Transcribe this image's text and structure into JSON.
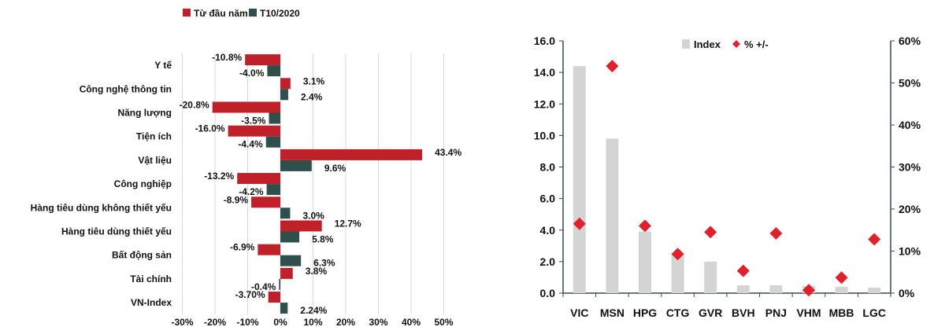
{
  "chart_data": [
    {
      "type": "bar",
      "orientation": "horizontal",
      "categories": [
        "Y tế",
        "Công nghệ thông tin",
        "Năng lượng",
        "Tiện ích",
        "Vật liệu",
        "Công nghiệp",
        "Hàng tiêu dùng không thiết yếu",
        "Hàng tiêu dùng thiết yếu",
        "Bất động sản",
        "Tài chính",
        "VN-Index"
      ],
      "series": [
        {
          "name": "Từ đầu năm",
          "color": "#c0202a",
          "values": [
            -10.8,
            3.1,
            -20.8,
            -16.0,
            43.4,
            -13.2,
            -8.9,
            12.7,
            -6.9,
            3.8,
            -3.7
          ],
          "labels": [
            "-10.8%",
            "3.1%",
            "-20.8%",
            "-16.0%",
            "43.4%",
            "-13.2%",
            "-8.9%",
            "12.7%",
            "-6.9%",
            "3.8%",
            "-3.70%"
          ]
        },
        {
          "name": "T10/2020",
          "color": "#2f4f4c",
          "values": [
            -4.0,
            2.4,
            -3.5,
            -4.4,
            9.6,
            -4.2,
            3.0,
            5.8,
            6.3,
            -0.4,
            2.24
          ],
          "labels": [
            "-4.0%",
            "2.4%",
            "-3.5%",
            "-4.4%",
            "9.6%",
            "-4.2%",
            "3.0%",
            "5.8%",
            "6.3%",
            "-0.4%",
            "2.24%"
          ]
        }
      ],
      "xlim": [
        -30,
        50
      ],
      "xticks": [
        "-30%",
        "-20%",
        "-10%",
        "0%",
        "10%",
        "20%",
        "30%",
        "40%",
        "50%"
      ],
      "grid": true,
      "legend": "top"
    },
    {
      "type": "bar+scatter",
      "categories": [
        "VIC",
        "MSN",
        "HPG",
        "CTG",
        "GVR",
        "BVH",
        "PNJ",
        "VHM",
        "MBB",
        "LGC"
      ],
      "series": [
        {
          "name": "Index",
          "type": "bar",
          "axis": "left",
          "color": "#d4d4d4",
          "values": [
            14.4,
            9.8,
            3.9,
            2.5,
            2.0,
            0.5,
            0.5,
            0.45,
            0.4,
            0.35
          ]
        },
        {
          "name": "% +/-",
          "type": "scatter",
          "axis": "right",
          "color": "#e0202a",
          "values": [
            16.5,
            54,
            16,
            9.3,
            14.5,
            5.3,
            14.2,
            0.7,
            3.7,
            12.8
          ]
        }
      ],
      "ylim_left": [
        0,
        16
      ],
      "yticks_left": [
        "0.0",
        "2.0",
        "4.0",
        "6.0",
        "8.0",
        "10.0",
        "12.0",
        "14.0",
        "16.0"
      ],
      "ylim_right": [
        0,
        60
      ],
      "yticks_right": [
        "0%",
        "10%",
        "20%",
        "30%",
        "40%",
        "50%",
        "60%"
      ],
      "grid": false,
      "legend": "top"
    }
  ]
}
